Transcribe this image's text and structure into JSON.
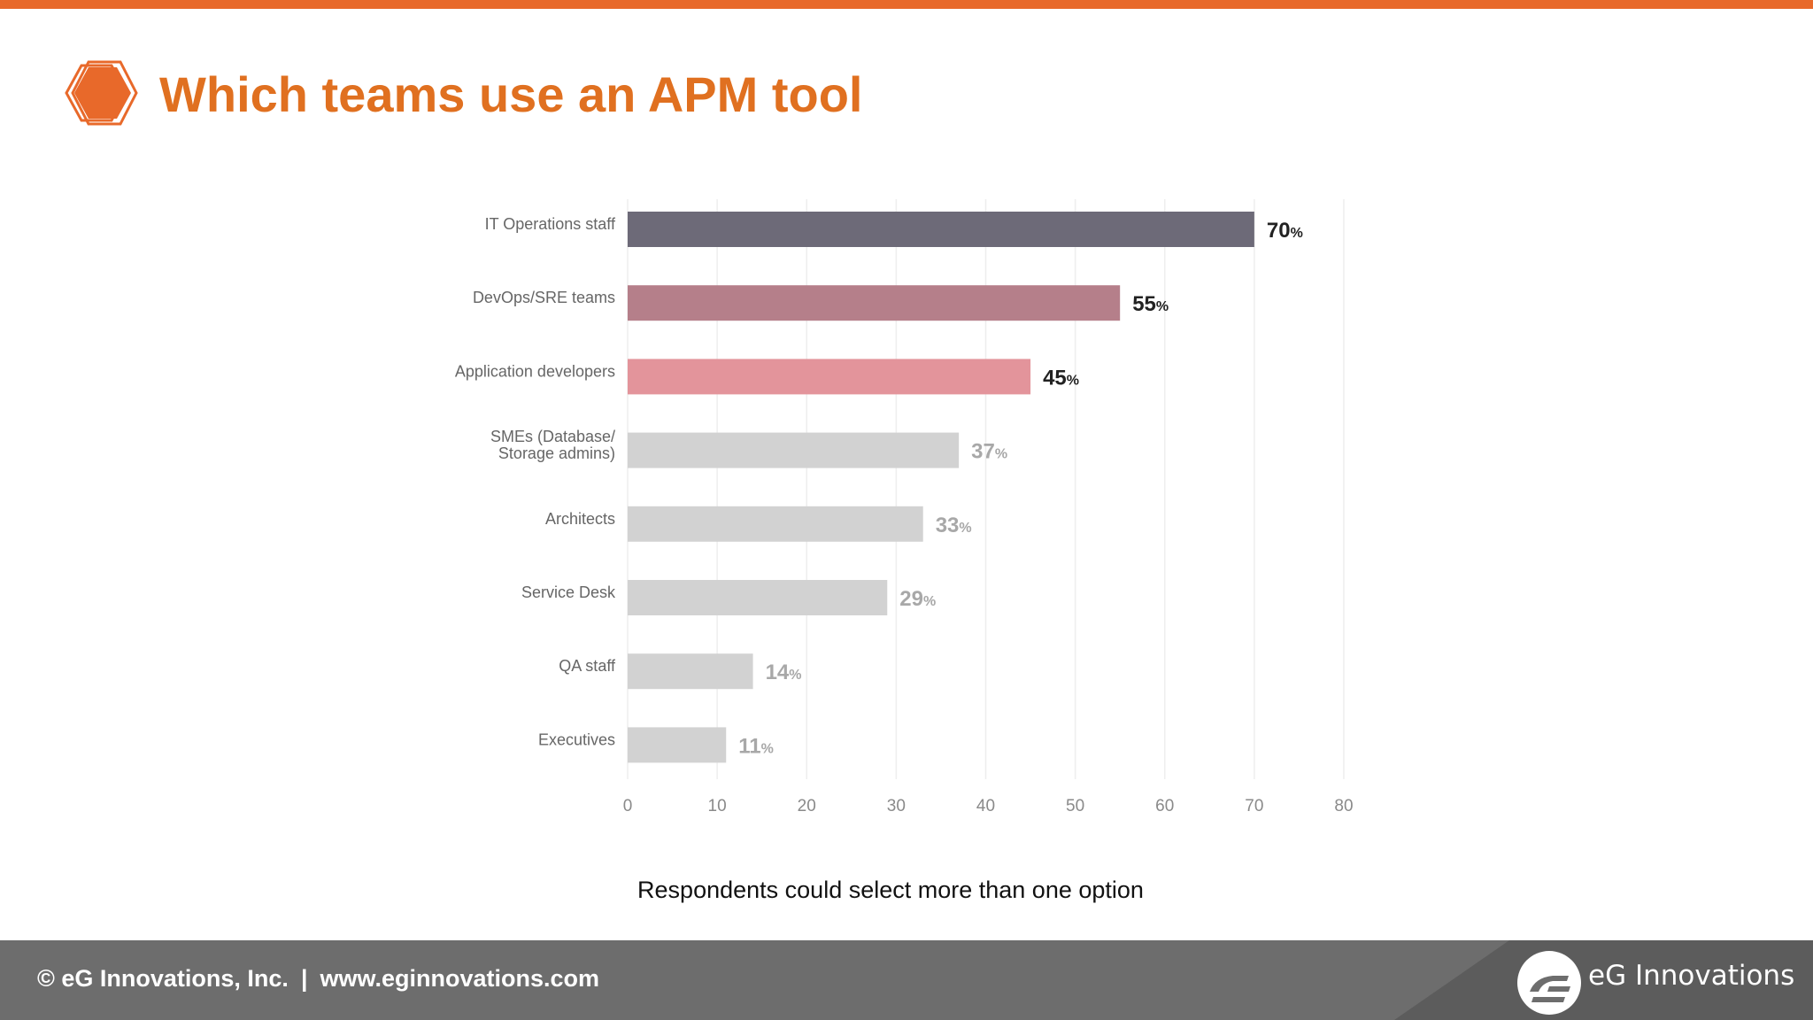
{
  "header": {
    "title": "Which teams use an APM tool",
    "icon": "hexagon-icon",
    "accent_color": "#e8692a",
    "title_color": "#e07020"
  },
  "chart_data": {
    "type": "bar",
    "orientation": "horizontal",
    "categories": [
      [
        "IT Operations staff"
      ],
      [
        "DevOps/SRE teams"
      ],
      [
        "Application developers"
      ],
      [
        "SMEs (Database/",
        "Storage admins)"
      ],
      [
        "Architects"
      ],
      [
        "Service Desk"
      ],
      [
        "QA staff"
      ],
      [
        "Executives"
      ]
    ],
    "values": [
      70,
      55,
      45,
      37,
      33,
      29,
      14,
      11
    ],
    "value_suffix": "%",
    "colors": [
      "#6d6a78",
      "#b57f8a",
      "#e3949b",
      "#d2d2d2",
      "#d2d2d2",
      "#d2d2d2",
      "#d2d2d2",
      "#d2d2d2"
    ],
    "value_label_colors": [
      "#222222",
      "#222222",
      "#222222",
      "#a8a8a8",
      "#a8a8a8",
      "#a8a8a8",
      "#a8a8a8",
      "#a8a8a8"
    ],
    "xlim": [
      0,
      80
    ],
    "xticks": [
      0,
      10,
      20,
      30,
      40,
      50,
      60,
      70,
      80
    ],
    "grid": true,
    "title": "",
    "xlabel": "",
    "ylabel": ""
  },
  "footnote": "Respondents could select more than one option",
  "footer": {
    "copyright": "© eG Innovations, Inc.",
    "separator": "|",
    "website": "www.eginnovations.com",
    "brand": "eG Innovations",
    "logo_icon": "eg-logo-icon"
  }
}
